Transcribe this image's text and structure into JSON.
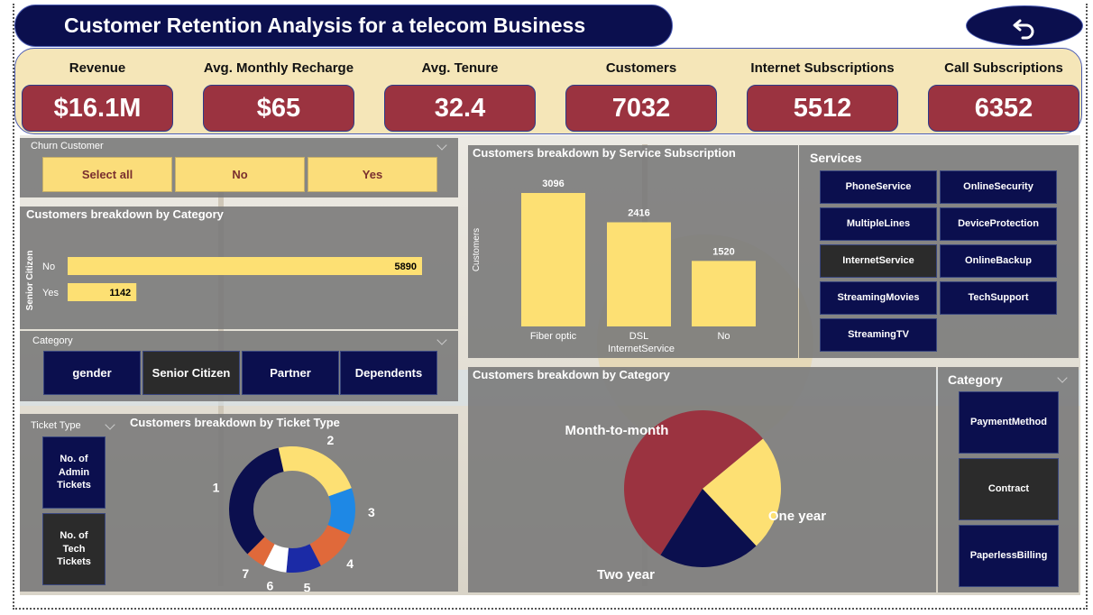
{
  "header": {
    "title": "Customer Retention Analysis for a telecom Business",
    "back_icon": "undo-arrow-icon"
  },
  "kpis": [
    {
      "label": "Revenue",
      "value": "$16.1M"
    },
    {
      "label": "Avg. Monthly Recharge",
      "value": "$65"
    },
    {
      "label": "Avg. Tenure",
      "value": "32.4"
    },
    {
      "label": "Customers",
      "value": "7032"
    },
    {
      "label": "Internet Subscriptions",
      "value": "5512"
    },
    {
      "label": "Call Subscriptions",
      "value": "6352"
    }
  ],
  "churn_slicer": {
    "title": "Churn Customer",
    "options": [
      "Select all",
      "No",
      "Yes"
    ]
  },
  "category_slicer": {
    "title": "Category",
    "options": [
      "gender",
      "Senior Citizen",
      "Partner",
      "Dependents"
    ],
    "selected": "Senior Citizen"
  },
  "ticket_slicer": {
    "title": "Ticket Type",
    "options": [
      "No. of Admin Tickets",
      "No. of Tech Tickets"
    ],
    "selected": "No. of Tech Tickets"
  },
  "services_slicer": {
    "title": "Services",
    "options": [
      "PhoneService",
      "OnlineSecurity",
      "MultipleLines",
      "DeviceProtection",
      "InternetService",
      "OnlineBackup",
      "StreamingMovies",
      "TechSupport",
      "StreamingTV"
    ],
    "selected": "InternetService"
  },
  "contract_slicer": {
    "title": "Category",
    "options": [
      "PaymentMethod",
      "Contract",
      "PaperlessBilling"
    ],
    "selected": "Contract"
  },
  "colors": {
    "navy": "#0b0f4e",
    "maroon": "#9b3340",
    "yellow": "#fde073",
    "cream": "#f5e6b8"
  },
  "chart_data": [
    {
      "type": "bar",
      "orientation": "horizontal",
      "title": "Customers breakdown by Category",
      "ylabel": "Senior Citizen",
      "categories": [
        "No",
        "Yes"
      ],
      "values": [
        5890,
        1142
      ]
    },
    {
      "type": "bar",
      "title": "Customers breakdown by Service Subscription",
      "xlabel": "InternetService",
      "ylabel": "Customers",
      "categories": [
        "Fiber optic",
        "DSL",
        "No"
      ],
      "values": [
        3096,
        2416,
        1520
      ]
    },
    {
      "type": "pie",
      "donut": true,
      "title": "Customers breakdown by Ticket Type",
      "labels": [
        "1",
        "2",
        "3",
        "4",
        "5",
        "6",
        "7"
      ],
      "values": [
        34,
        23,
        12,
        11,
        9,
        6,
        5
      ],
      "colors": [
        "#0b0f4e",
        "#fde073",
        "#1e88e5",
        "#e0693a",
        "#1b2aa6",
        "#ffffff",
        "#e0693a"
      ]
    },
    {
      "type": "pie",
      "title": "Customers breakdown by Category",
      "labels": [
        "Month-to-month",
        "One year",
        "Two year"
      ],
      "values": [
        55,
        24,
        21
      ],
      "colors": [
        "#9b3340",
        "#fde073",
        "#0b0f4e"
      ]
    }
  ]
}
